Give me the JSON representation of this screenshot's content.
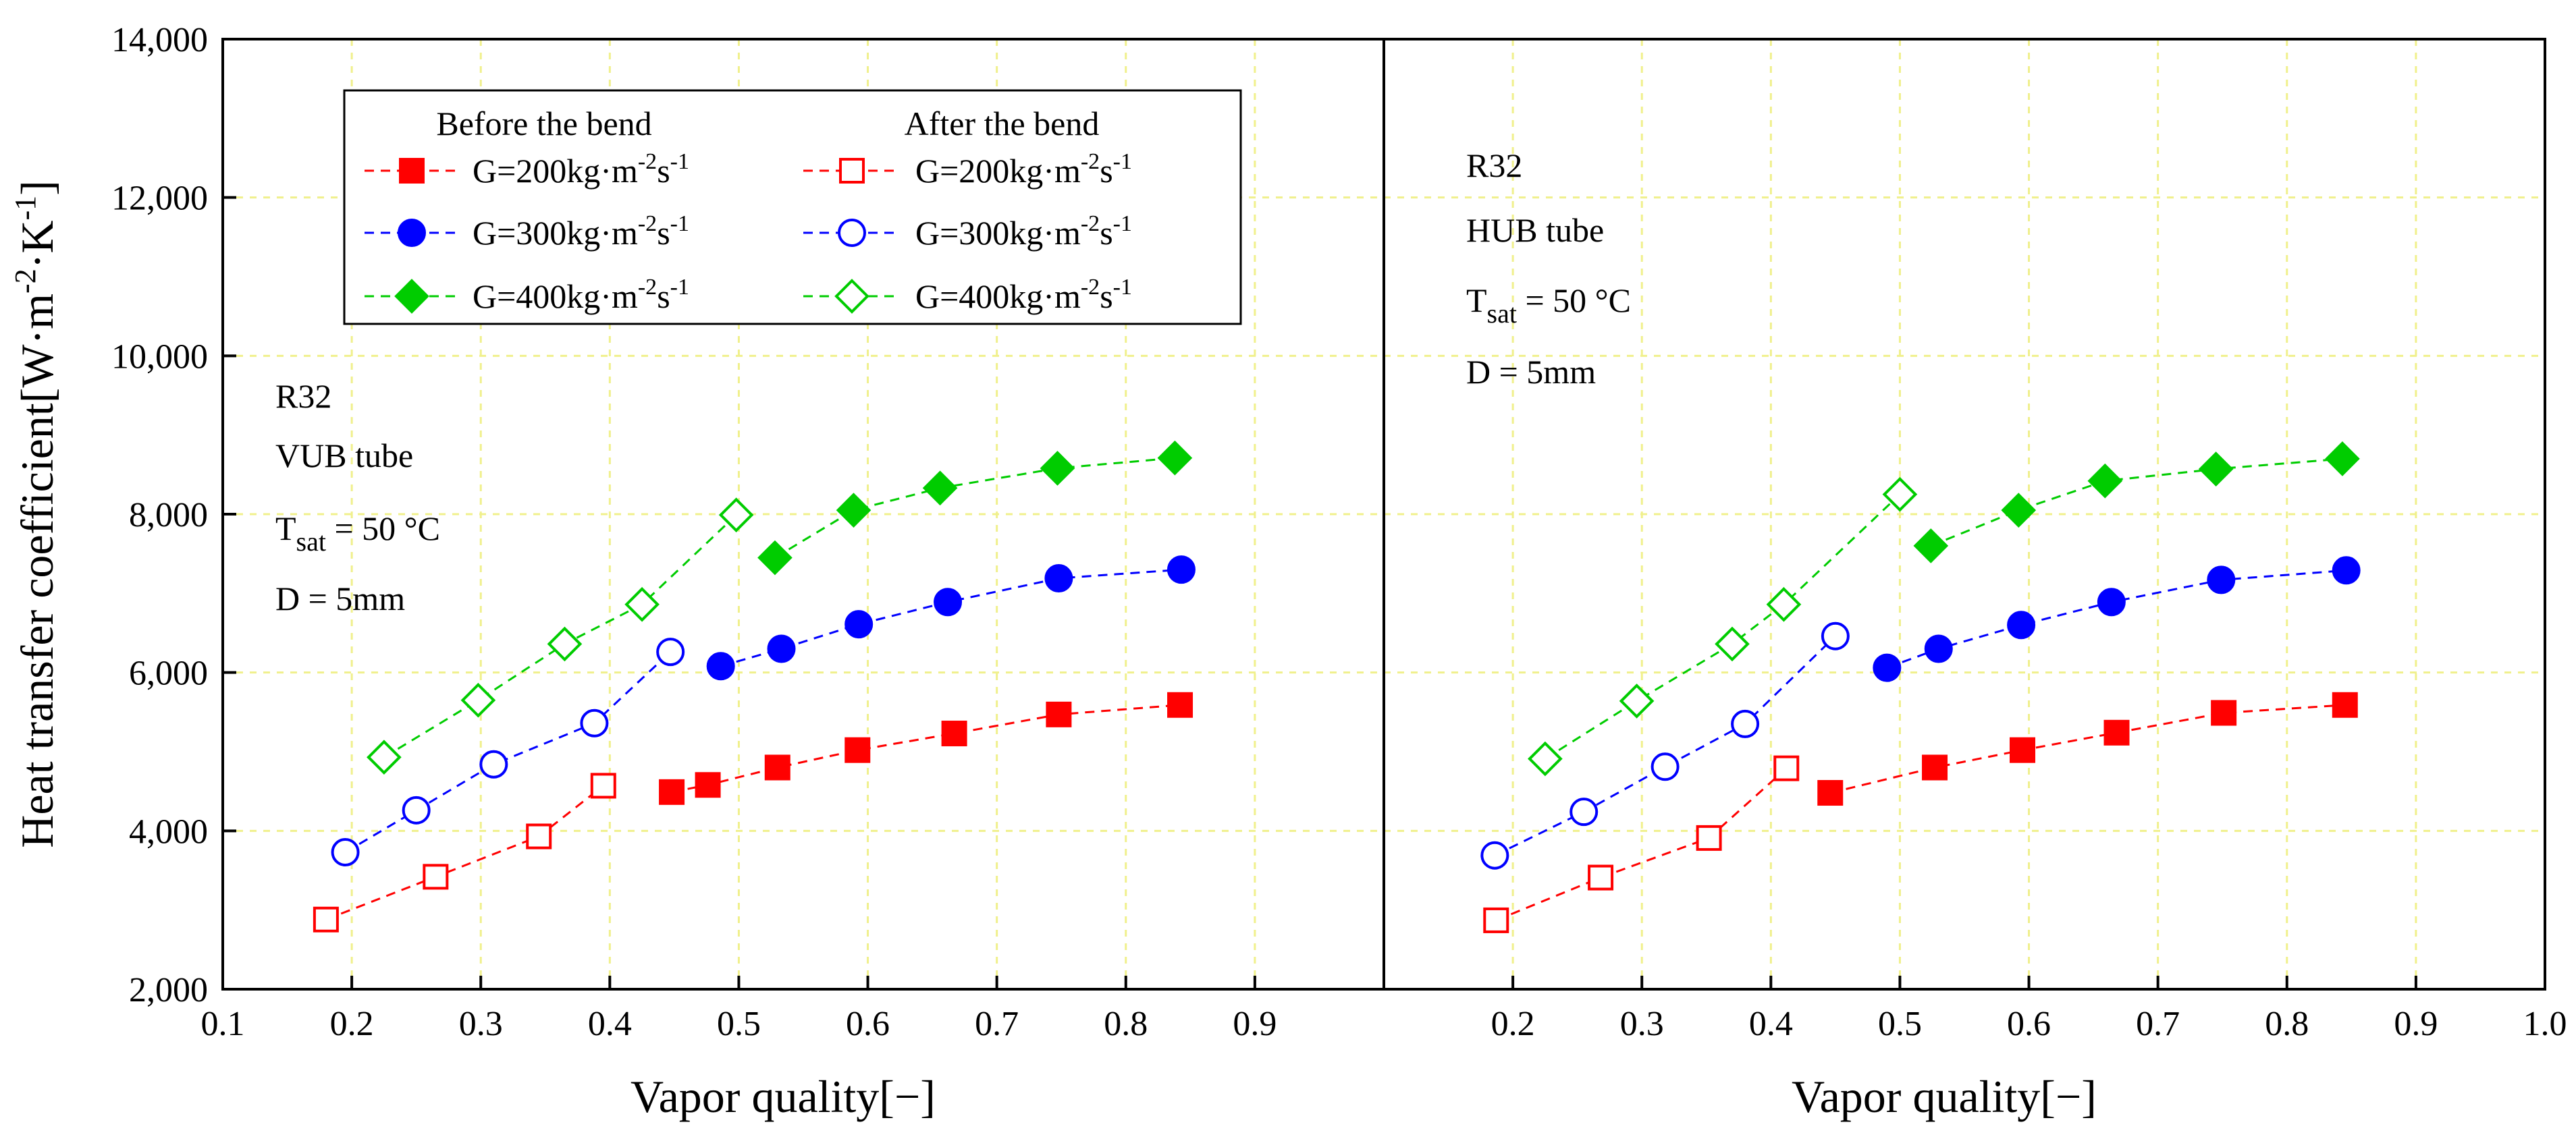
{
  "chart_data": {
    "type": "scatter",
    "y_axis": {
      "label_main": "Heat transfer coefficient[W·m",
      "label_sup1": "-2",
      "label_mid": "·K",
      "label_sup2": "-1",
      "label_end": "]",
      "min": 2000,
      "max": 14000,
      "ticks": [
        {
          "value": 2000,
          "label": "2,000"
        },
        {
          "value": 4000,
          "label": "4,000"
        },
        {
          "value": 6000,
          "label": "6,000"
        },
        {
          "value": 8000,
          "label": "8,000"
        },
        {
          "value": 10000,
          "label": "10,000"
        },
        {
          "value": 12000,
          "label": "12,000"
        },
        {
          "value": 14000,
          "label": "14,000"
        }
      ]
    },
    "legend": {
      "header_before": "Before the bend",
      "header_after": "After the bend",
      "entries": [
        {
          "series": "G200",
          "prefix": "G=200kg·m",
          "sup1": "-2",
          "mid": "s",
          "sup2": "-1"
        },
        {
          "series": "G300",
          "prefix": "G=300kg·m",
          "sup1": "-2",
          "mid": "s",
          "sup2": "-1"
        },
        {
          "series": "G400",
          "prefix": "G=400kg·m",
          "sup1": "-2",
          "mid": "s",
          "sup2": "-1"
        }
      ]
    },
    "series_styles": {
      "G200": {
        "color": "#ff0000",
        "marker": "square"
      },
      "G300": {
        "color": "#0000ff",
        "marker": "circle"
      },
      "G400": {
        "color": "#00cc00",
        "marker": "diamond"
      }
    },
    "panels": [
      {
        "id": "left",
        "xlabel": "Vapor quality[−]",
        "xlim": [
          0.1,
          1.0
        ],
        "x_ticks": [
          {
            "value": 0.1,
            "label": "0.1"
          },
          {
            "value": 0.2,
            "label": "0.2"
          },
          {
            "value": 0.3,
            "label": "0.3"
          },
          {
            "value": 0.4,
            "label": "0.4"
          },
          {
            "value": 0.5,
            "label": "0.5"
          },
          {
            "value": 0.6,
            "label": "0.6"
          },
          {
            "value": 0.7,
            "label": "0.7"
          },
          {
            "value": 0.8,
            "label": "0.8"
          },
          {
            "value": 0.9,
            "label": "0.9"
          }
        ],
        "annotation": {
          "refrigerant": "R32",
          "tube": "VUB tube",
          "tsat_main": "T",
          "tsat_sub": "sat",
          "tsat_rest": " = 50 °C",
          "diameter": "D = 5mm"
        },
        "series": [
          {
            "name": "G200",
            "phase": "after",
            "x": [
              0.18,
              0.265,
              0.345,
              0.395
            ],
            "y": [
              2880,
              3420,
              3930,
              4570
            ]
          },
          {
            "name": "G200",
            "phase": "before",
            "x": [
              0.448,
              0.476,
              0.53,
              0.592,
              0.667,
              0.748,
              0.842
            ],
            "y": [
              4490,
              4580,
              4800,
              5020,
              5230,
              5470,
              5590
            ]
          },
          {
            "name": "G300",
            "phase": "after",
            "x": [
              0.195,
              0.25,
              0.31,
              0.388,
              0.447
            ],
            "y": [
              3730,
              4260,
              4840,
              5360,
              6260
            ]
          },
          {
            "name": "G300",
            "phase": "before",
            "x": [
              0.486,
              0.533,
              0.593,
              0.662,
              0.748,
              0.843
            ],
            "y": [
              6080,
              6300,
              6610,
              6890,
              7190,
              7300
            ]
          },
          {
            "name": "G400",
            "phase": "after",
            "x": [
              0.225,
              0.298,
              0.365,
              0.425,
              0.498
            ],
            "y": [
              4930,
              5650,
              6360,
              6860,
              7990
            ]
          },
          {
            "name": "G400",
            "phase": "before",
            "x": [
              0.528,
              0.589,
              0.656,
              0.747,
              0.838
            ],
            "y": [
              7450,
              8050,
              8330,
              8580,
              8710
            ]
          }
        ]
      },
      {
        "id": "right",
        "xlabel": "Vapor quality[−]",
        "xlim": [
          0.1,
          1.0
        ],
        "x_ticks": [
          {
            "value": 0.2,
            "label": "0.2"
          },
          {
            "value": 0.3,
            "label": "0.3"
          },
          {
            "value": 0.4,
            "label": "0.4"
          },
          {
            "value": 0.5,
            "label": "0.5"
          },
          {
            "value": 0.6,
            "label": "0.6"
          },
          {
            "value": 0.7,
            "label": "0.7"
          },
          {
            "value": 0.8,
            "label": "0.8"
          },
          {
            "value": 0.9,
            "label": "0.9"
          },
          {
            "value": 1.0,
            "label": "1.0"
          }
        ],
        "annotation": {
          "refrigerant": "R32",
          "tube": "HUB tube",
          "tsat_main": "T",
          "tsat_sub": "sat",
          "tsat_rest": " = 50 °C",
          "diameter": "D = 5mm"
        },
        "series": [
          {
            "name": "G200",
            "phase": "after",
            "x": [
              0.187,
              0.268,
              0.352,
              0.412
            ],
            "y": [
              2870,
              3410,
              3910,
              4790
            ]
          },
          {
            "name": "G200",
            "phase": "before",
            "x": [
              0.446,
              0.527,
              0.595,
              0.668,
              0.751,
              0.845
            ],
            "y": [
              4480,
              4800,
              5020,
              5240,
              5490,
              5590
            ]
          },
          {
            "name": "G300",
            "phase": "after",
            "x": [
              0.186,
              0.255,
              0.318,
              0.38,
              0.45
            ],
            "y": [
              3690,
              4240,
              4810,
              5350,
              6460
            ]
          },
          {
            "name": "G300",
            "phase": "before",
            "x": [
              0.49,
              0.53,
              0.594,
              0.664,
              0.749,
              0.846
            ],
            "y": [
              6060,
              6300,
              6600,
              6890,
              7170,
              7290
            ]
          },
          {
            "name": "G400",
            "phase": "after",
            "x": [
              0.225,
              0.296,
              0.37,
              0.41,
              0.5
            ],
            "y": [
              4910,
              5640,
              6360,
              6860,
              8250
            ]
          },
          {
            "name": "G400",
            "phase": "before",
            "x": [
              0.524,
              0.592,
              0.659,
              0.745,
              0.843
            ],
            "y": [
              7600,
              8050,
              8420,
              8570,
              8700
            ]
          }
        ]
      }
    ]
  }
}
